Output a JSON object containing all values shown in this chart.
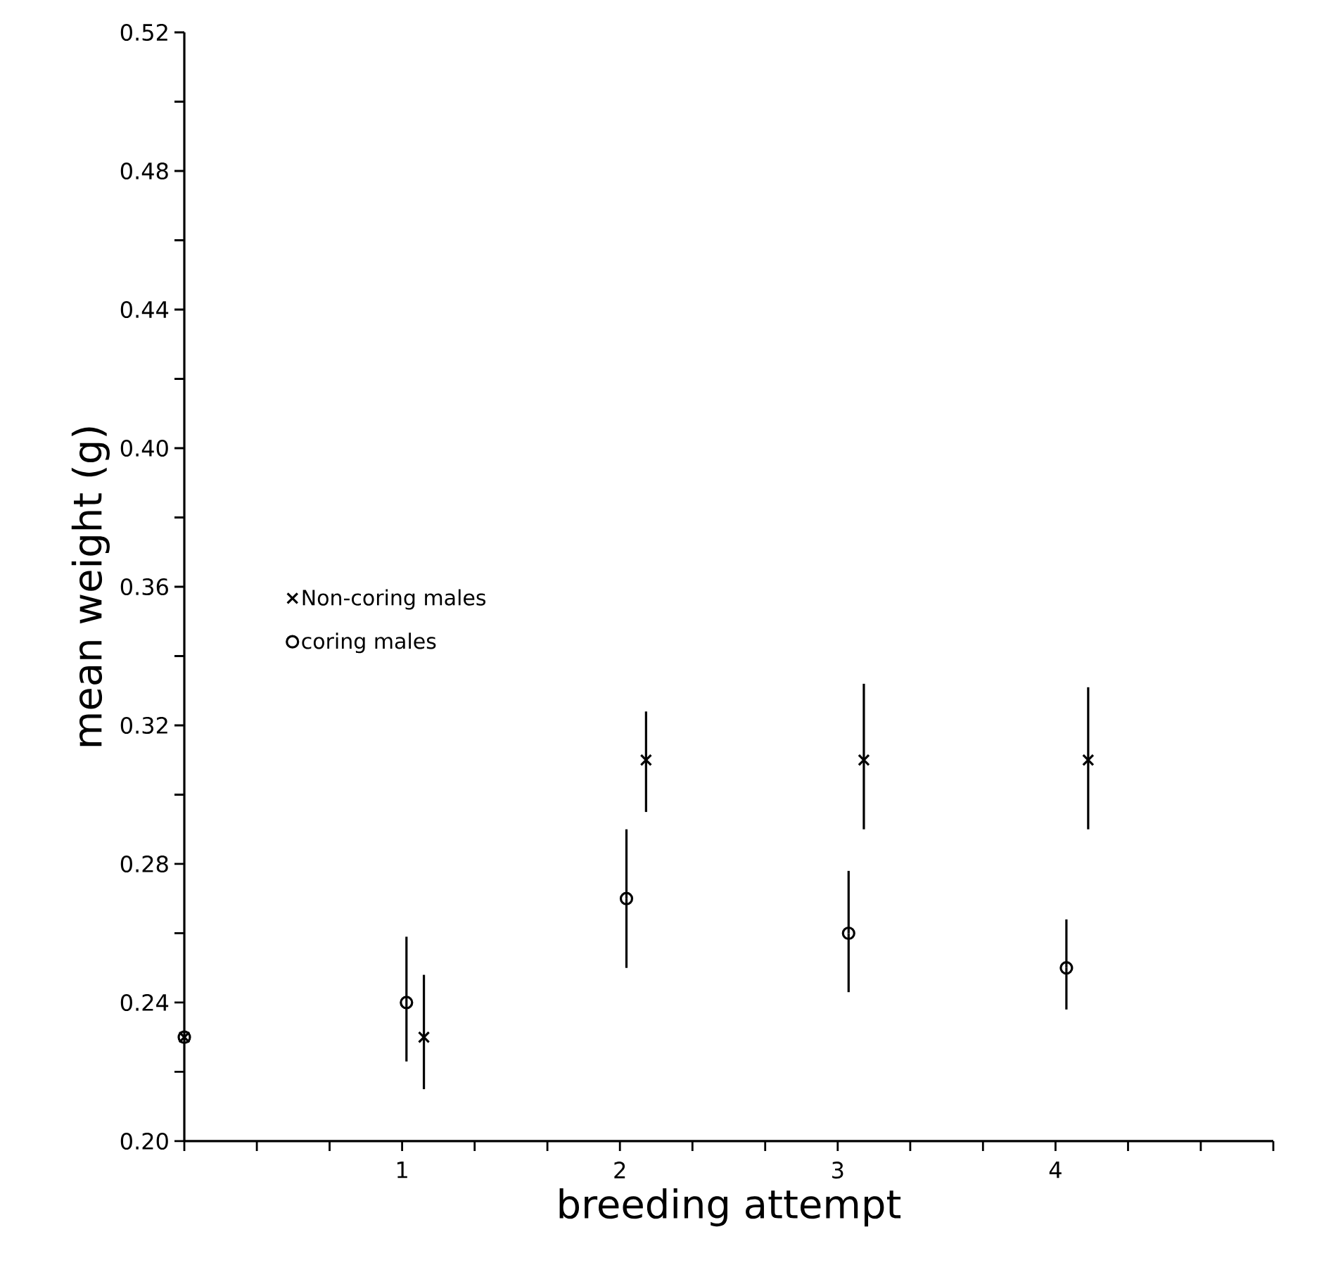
{
  "chart_data": {
    "type": "scatter",
    "xlabel": "breeding attempt",
    "ylabel": "mean weight (g)",
    "xlim": [
      0,
      5
    ],
    "ylim": [
      0.2,
      0.52
    ],
    "xticks": [
      {
        "value": 0,
        "label": null
      },
      {
        "value": 0.333,
        "label": null
      },
      {
        "value": 0.667,
        "label": null
      },
      1,
      {
        "value": 1.333,
        "label": null
      },
      {
        "value": 1.667,
        "label": null
      },
      2,
      {
        "value": 2.333,
        "label": null
      },
      {
        "value": 2.667,
        "label": null
      },
      3,
      {
        "value": 3.333,
        "label": null
      },
      {
        "value": 3.667,
        "label": null
      },
      4,
      {
        "value": 4.333,
        "label": null
      },
      {
        "value": 4.667,
        "label": null
      },
      {
        "value": 5,
        "label": null
      }
    ],
    "yticks": [
      {
        "value": 0.2,
        "label": "0.20"
      },
      {
        "value": 0.22,
        "label": null
      },
      {
        "value": 0.24,
        "label": "0.24"
      },
      {
        "value": 0.26,
        "label": null
      },
      {
        "value": 0.28,
        "label": "0.28"
      },
      {
        "value": 0.3,
        "label": null
      },
      {
        "value": 0.32,
        "label": "0.32"
      },
      {
        "value": 0.34,
        "label": null
      },
      {
        "value": 0.36,
        "label": "0.36"
      },
      {
        "value": 0.38,
        "label": null
      },
      {
        "value": 0.4,
        "label": "0.40"
      },
      {
        "value": 0.42,
        "label": null
      },
      {
        "value": 0.44,
        "label": "0.44"
      },
      {
        "value": 0.46,
        "label": null
      },
      {
        "value": 0.48,
        "label": "0.48"
      },
      {
        "value": 0.5,
        "label": null
      },
      {
        "value": 0.52,
        "label": "0.52"
      }
    ],
    "grid": false,
    "legend": "left",
    "series": [
      {
        "name": "Non-coring males",
        "color": "#000000",
        "marker": "cross",
        "x": [
          0,
          1.1,
          2.12,
          3.12,
          4.15
        ],
        "values": [
          0.23,
          0.23,
          0.31,
          0.31,
          0.31
        ],
        "errors": [
          null,
          [
            0.215,
            0.248
          ],
          [
            0.295,
            0.324
          ],
          [
            0.29,
            0.332
          ],
          [
            0.29,
            0.331
          ]
        ]
      },
      {
        "name": "coring males",
        "color": "#000000",
        "marker": "circle",
        "x": [
          0,
          1.02,
          2.03,
          3.05,
          4.05
        ],
        "values": [
          0.23,
          0.24,
          0.27,
          0.26,
          0.25
        ],
        "errors": [
          null,
          [
            0.223,
            0.259
          ],
          [
            0.25,
            0.29
          ],
          [
            0.243,
            0.278
          ],
          [
            0.238,
            0.264
          ]
        ]
      }
    ]
  }
}
